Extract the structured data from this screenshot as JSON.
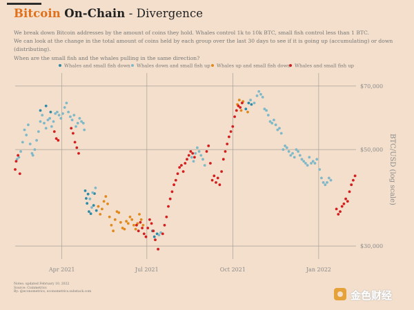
{
  "title": {
    "highlight": "Bitcoin",
    "bold": "On-Chain",
    "sep": "-",
    "rest": "Divergence"
  },
  "description": [
    "We break down Bitcoin addresses by the amount of coins they hold. Whales control 1k to 10k BTC, small fish control less than 1 BTC.",
    "We can look at the change in the total amount of coins held by each group over the last 30 days to see if it is going up (accumulating) or down (distributing).",
    "When are the small fish and the whales pulling in the same direction?"
  ],
  "notes": [
    "Notes: updated February 10, 2022",
    "Source: Coinmetrics",
    "By: @econometrics, econometrics.substack.com"
  ],
  "watermark": {
    "text": "金色财经",
    "logo_icon": "golden-coin-logo-icon"
  },
  "chart_data": {
    "type": "scatter",
    "x_axis": {
      "type": "date",
      "range": [
        "2021-02-10",
        "2022-02-10"
      ],
      "ticks": [
        {
          "date": "2021-04-01",
          "label": "Apr 2021"
        },
        {
          "date": "2021-07-01",
          "label": "Jul 2021"
        },
        {
          "date": "2021-10-01",
          "label": "Oct 2021"
        },
        {
          "date": "2022-01-01",
          "label": "Jan 2022"
        }
      ]
    },
    "y_axis": {
      "label": "BTC/USD (log scale)",
      "scale": "log",
      "range": [
        28000,
        75000
      ],
      "ticks": [
        {
          "value": 30000,
          "label": "$30,000"
        },
        {
          "value": 50000,
          "label": "$50,000"
        },
        {
          "value": 70000,
          "label": "$70,000"
        }
      ],
      "position": "right"
    },
    "grid": true,
    "legend_position": "top",
    "series": [
      {
        "name": "Whales and small fish down",
        "color": "#2e8aa6",
        "points": [
          [
            "2021-03-09",
            61500
          ],
          [
            "2021-03-15",
            63000
          ],
          [
            "2021-03-20",
            61000
          ],
          [
            "2021-04-26",
            40200
          ],
          [
            "2021-04-27",
            38600
          ],
          [
            "2021-04-28",
            37600
          ],
          [
            "2021-04-29",
            39500
          ],
          [
            "2021-04-30",
            36000
          ],
          [
            "2021-05-02",
            35600
          ],
          [
            "2021-05-05",
            37200
          ],
          [
            "2021-05-06",
            39600
          ],
          [
            "2021-05-08",
            36200
          ],
          [
            "2021-07-07",
            32500
          ],
          [
            "2021-07-09",
            31500
          ],
          [
            "2021-07-12",
            32000
          ],
          [
            "2021-10-15",
            62000
          ],
          [
            "2021-10-18",
            64000
          ],
          [
            "2021-10-21",
            63500
          ]
        ]
      },
      {
        "name": "Whales down and small fish up",
        "color": "#7fb8c8",
        "points": [
          [
            "2021-02-12",
            47500
          ],
          [
            "2021-02-14",
            48000
          ],
          [
            "2021-02-16",
            49500
          ],
          [
            "2021-02-18",
            52000
          ],
          [
            "2021-02-20",
            55500
          ],
          [
            "2021-02-22",
            54000
          ],
          [
            "2021-02-24",
            57000
          ],
          [
            "2021-02-26",
            51500
          ],
          [
            "2021-02-28",
            49000
          ],
          [
            "2021-03-01",
            48500
          ],
          [
            "2021-03-03",
            50000
          ],
          [
            "2021-03-05",
            52500
          ],
          [
            "2021-03-07",
            55000
          ],
          [
            "2021-03-09",
            58000
          ],
          [
            "2021-03-11",
            60000
          ],
          [
            "2021-03-13",
            57500
          ],
          [
            "2021-03-15",
            56000
          ],
          [
            "2021-03-17",
            58500
          ],
          [
            "2021-03-19",
            59000
          ],
          [
            "2021-03-21",
            56500
          ],
          [
            "2021-03-23",
            58000
          ],
          [
            "2021-03-25",
            60500
          ],
          [
            "2021-03-27",
            61000
          ],
          [
            "2021-03-29",
            60000
          ],
          [
            "2021-03-31",
            59000
          ],
          [
            "2021-04-02",
            60500
          ],
          [
            "2021-04-04",
            62500
          ],
          [
            "2021-04-06",
            64000
          ],
          [
            "2021-04-08",
            61000
          ],
          [
            "2021-04-10",
            59500
          ],
          [
            "2021-04-12",
            58500
          ],
          [
            "2021-04-14",
            60000
          ],
          [
            "2021-04-16",
            56500
          ],
          [
            "2021-04-18",
            57500
          ],
          [
            "2021-04-20",
            59000
          ],
          [
            "2021-04-22",
            58000
          ],
          [
            "2021-04-24",
            57500
          ],
          [
            "2021-04-25",
            55500
          ],
          [
            "2021-05-01",
            38500
          ],
          [
            "2021-05-03",
            36800
          ],
          [
            "2021-05-04",
            39800
          ],
          [
            "2021-05-07",
            40800
          ],
          [
            "2021-07-14",
            31800
          ],
          [
            "2021-07-16",
            32200
          ],
          [
            "2021-08-18",
            48000
          ],
          [
            "2021-08-20",
            47000
          ],
          [
            "2021-08-22",
            49000
          ],
          [
            "2021-08-24",
            50500
          ],
          [
            "2021-08-26",
            49500
          ],
          [
            "2021-08-28",
            48500
          ],
          [
            "2021-08-30",
            47500
          ],
          [
            "2021-09-01",
            46000
          ],
          [
            "2021-10-20",
            65000
          ],
          [
            "2021-10-24",
            64000
          ],
          [
            "2021-10-27",
            66500
          ],
          [
            "2021-10-29",
            68000
          ],
          [
            "2021-10-31",
            67000
          ],
          [
            "2021-11-02",
            66000
          ],
          [
            "2021-11-04",
            62000
          ],
          [
            "2021-11-06",
            61500
          ],
          [
            "2021-11-08",
            60000
          ],
          [
            "2021-11-10",
            58000
          ],
          [
            "2021-11-12",
            57500
          ],
          [
            "2021-11-14",
            58500
          ],
          [
            "2021-11-16",
            57000
          ],
          [
            "2021-11-18",
            55500
          ],
          [
            "2021-11-20",
            56000
          ],
          [
            "2021-11-22",
            54500
          ],
          [
            "2021-11-24",
            50000
          ],
          [
            "2021-11-26",
            51000
          ],
          [
            "2021-11-28",
            50500
          ],
          [
            "2021-11-30",
            49500
          ],
          [
            "2021-12-02",
            48500
          ],
          [
            "2021-12-04",
            49000
          ],
          [
            "2021-12-06",
            48000
          ],
          [
            "2021-12-08",
            50000
          ],
          [
            "2021-12-10",
            49500
          ],
          [
            "2021-12-12",
            48500
          ],
          [
            "2021-12-14",
            47500
          ],
          [
            "2021-12-16",
            47000
          ],
          [
            "2021-12-18",
            46500
          ],
          [
            "2021-12-20",
            46000
          ],
          [
            "2021-12-22",
            48000
          ],
          [
            "2021-12-24",
            46500
          ],
          [
            "2021-12-26",
            47000
          ],
          [
            "2021-12-28",
            46500
          ],
          [
            "2021-12-30",
            47500
          ],
          [
            "2022-01-02",
            45000
          ],
          [
            "2022-01-04",
            43000
          ],
          [
            "2022-01-06",
            42000
          ],
          [
            "2022-01-08",
            41500
          ],
          [
            "2022-01-10",
            42000
          ],
          [
            "2022-01-12",
            43000
          ],
          [
            "2022-01-14",
            42500
          ]
        ]
      },
      {
        "name": "Whales up and small fish down",
        "color": "#e0891c",
        "points": [
          [
            "2021-05-10",
            37000
          ],
          [
            "2021-05-12",
            35500
          ],
          [
            "2021-05-14",
            36500
          ],
          [
            "2021-05-16",
            38000
          ],
          [
            "2021-05-18",
            39000
          ],
          [
            "2021-05-20",
            37500
          ],
          [
            "2021-05-22",
            35000
          ],
          [
            "2021-05-24",
            33500
          ],
          [
            "2021-05-26",
            32500
          ],
          [
            "2021-05-28",
            34500
          ],
          [
            "2021-05-30",
            36000
          ],
          [
            "2021-06-01",
            35800
          ],
          [
            "2021-06-03",
            34000
          ],
          [
            "2021-06-05",
            33000
          ],
          [
            "2021-06-07",
            32800
          ],
          [
            "2021-06-09",
            34200
          ],
          [
            "2021-06-11",
            33800
          ],
          [
            "2021-06-13",
            35000
          ],
          [
            "2021-06-15",
            34500
          ],
          [
            "2021-06-17",
            33500
          ],
          [
            "2021-06-19",
            32800
          ],
          [
            "2021-06-21",
            33800
          ],
          [
            "2021-06-23",
            35500
          ],
          [
            "2021-06-25",
            34500
          ],
          [
            "2021-06-27",
            33500
          ],
          [
            "2021-10-06",
            63500
          ],
          [
            "2021-10-08",
            65000
          ],
          [
            "2021-10-10",
            61500
          ],
          [
            "2021-10-12",
            64500
          ],
          [
            "2021-10-17",
            61000
          ]
        ]
      },
      {
        "name": "Whales and small fish up",
        "color": "#d21e1e",
        "points": [
          [
            "2021-02-10",
            45000
          ],
          [
            "2021-02-11",
            47000
          ],
          [
            "2021-02-13",
            48500
          ],
          [
            "2021-02-15",
            44000
          ],
          [
            "2021-03-24",
            55000
          ],
          [
            "2021-03-26",
            53000
          ],
          [
            "2021-03-28",
            52500
          ],
          [
            "2021-04-11",
            56000
          ],
          [
            "2021-04-13",
            54500
          ],
          [
            "2021-04-15",
            52000
          ],
          [
            "2021-04-17",
            50500
          ],
          [
            "2021-04-19",
            49000
          ],
          [
            "2021-06-20",
            33500
          ],
          [
            "2021-06-22",
            32500
          ],
          [
            "2021-06-24",
            34000
          ],
          [
            "2021-06-26",
            33000
          ],
          [
            "2021-06-28",
            32000
          ],
          [
            "2021-06-30",
            31500
          ],
          [
            "2021-07-02",
            33000
          ],
          [
            "2021-07-04",
            34500
          ],
          [
            "2021-07-06",
            33800
          ],
          [
            "2021-07-08",
            32500
          ],
          [
            "2021-07-10",
            31000
          ],
          [
            "2021-07-13",
            29500
          ],
          [
            "2021-07-18",
            32000
          ],
          [
            "2021-07-20",
            33500
          ],
          [
            "2021-07-22",
            35000
          ],
          [
            "2021-07-24",
            37000
          ],
          [
            "2021-07-26",
            38500
          ],
          [
            "2021-07-28",
            40000
          ],
          [
            "2021-07-30",
            41500
          ],
          [
            "2021-08-01",
            42500
          ],
          [
            "2021-08-03",
            44000
          ],
          [
            "2021-08-05",
            45500
          ],
          [
            "2021-08-07",
            46000
          ],
          [
            "2021-08-09",
            44500
          ],
          [
            "2021-08-11",
            46500
          ],
          [
            "2021-08-13",
            47500
          ],
          [
            "2021-08-15",
            48500
          ],
          [
            "2021-08-17",
            49500
          ],
          [
            "2021-08-19",
            49000
          ],
          [
            "2021-08-21",
            48000
          ],
          [
            "2021-09-03",
            49500
          ],
          [
            "2021-09-05",
            51000
          ],
          [
            "2021-09-07",
            46500
          ],
          [
            "2021-09-09",
            42500
          ],
          [
            "2021-09-11",
            43500
          ],
          [
            "2021-09-13",
            42000
          ],
          [
            "2021-09-15",
            43000
          ],
          [
            "2021-09-17",
            41500
          ],
          [
            "2021-09-19",
            44500
          ],
          [
            "2021-09-21",
            47500
          ],
          [
            "2021-09-23",
            49500
          ],
          [
            "2021-09-25",
            51500
          ],
          [
            "2021-09-27",
            53500
          ],
          [
            "2021-09-29",
            55000
          ],
          [
            "2021-10-01",
            56500
          ],
          [
            "2021-10-03",
            59500
          ],
          [
            "2021-10-05",
            61500
          ],
          [
            "2021-10-07",
            63000
          ],
          [
            "2021-10-09",
            62500
          ],
          [
            "2021-10-11",
            64000
          ],
          [
            "2022-01-20",
            36500
          ],
          [
            "2022-01-22",
            35500
          ],
          [
            "2022-01-24",
            36000
          ],
          [
            "2022-01-26",
            37000
          ],
          [
            "2022-01-28",
            37500
          ],
          [
            "2022-01-30",
            38500
          ],
          [
            "2022-02-01",
            38000
          ],
          [
            "2022-02-03",
            40000
          ],
          [
            "2022-02-05",
            41500
          ],
          [
            "2022-02-07",
            42500
          ],
          [
            "2022-02-09",
            43500
          ]
        ]
      }
    ]
  }
}
